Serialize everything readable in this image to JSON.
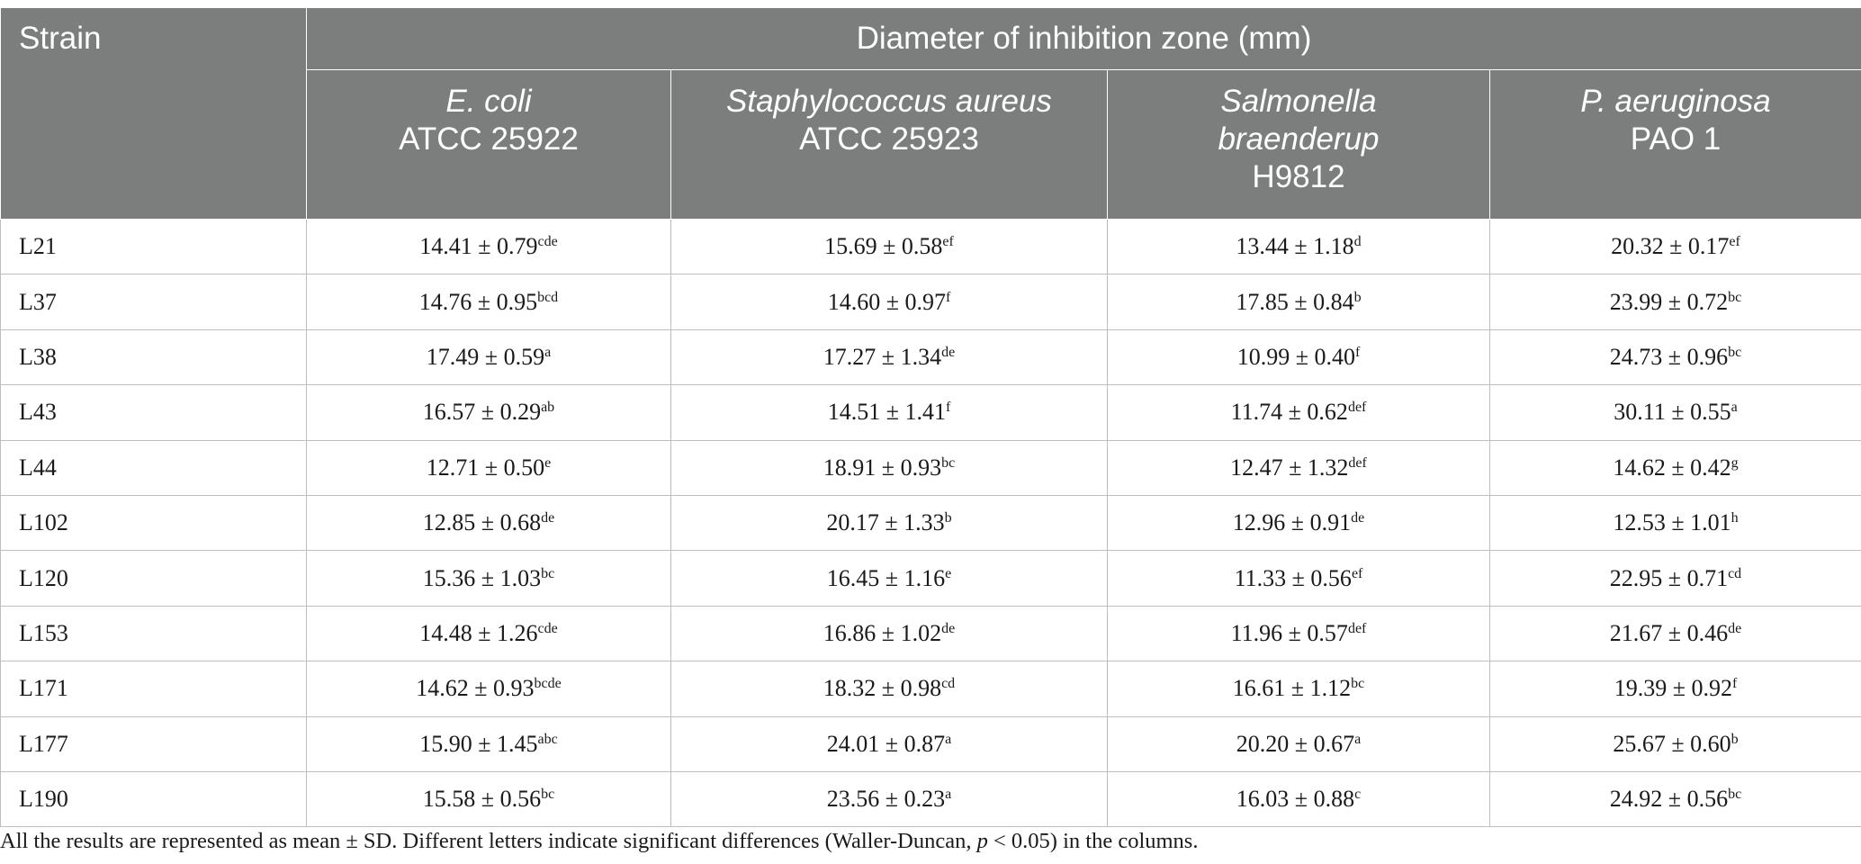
{
  "header": {
    "strain_label": "Strain",
    "group_label": "Diameter of inhibition zone (mm)",
    "columns": [
      {
        "species": [
          "E. coli"
        ],
        "id": "ATCC 25922"
      },
      {
        "species": [
          "Staphylococcus aureus"
        ],
        "id": "ATCC 25923"
      },
      {
        "species": [
          "Salmonella",
          "braenderup"
        ],
        "id": "H9812"
      },
      {
        "species": [
          "P. aeruginosa"
        ],
        "id": "PAO 1"
      }
    ]
  },
  "rows": [
    {
      "strain": "L21",
      "cells": [
        {
          "v": "14.41 ± 0.79",
          "s": "cde"
        },
        {
          "v": "15.69 ± 0.58",
          "s": "ef"
        },
        {
          "v": "13.44 ± 1.18",
          "s": "d"
        },
        {
          "v": "20.32 ± 0.17",
          "s": "ef"
        }
      ]
    },
    {
      "strain": "L37",
      "cells": [
        {
          "v": "14.76 ± 0.95",
          "s": "bcd"
        },
        {
          "v": "14.60 ± 0.97",
          "s": "f"
        },
        {
          "v": "17.85 ± 0.84",
          "s": "b"
        },
        {
          "v": "23.99 ± 0.72",
          "s": "bc"
        }
      ]
    },
    {
      "strain": "L38",
      "cells": [
        {
          "v": "17.49 ± 0.59",
          "s": "a"
        },
        {
          "v": "17.27 ± 1.34",
          "s": "de"
        },
        {
          "v": "10.99 ± 0.40",
          "s": "f"
        },
        {
          "v": "24.73 ± 0.96",
          "s": "bc"
        }
      ]
    },
    {
      "strain": "L43",
      "cells": [
        {
          "v": "16.57 ± 0.29",
          "s": "ab"
        },
        {
          "v": "14.51 ± 1.41",
          "s": "f"
        },
        {
          "v": "11.74 ± 0.62",
          "s": "def"
        },
        {
          "v": "30.11 ± 0.55",
          "s": "a"
        }
      ]
    },
    {
      "strain": "L44",
      "cells": [
        {
          "v": "12.71 ± 0.50",
          "s": "e"
        },
        {
          "v": "18.91 ± 0.93",
          "s": "bc"
        },
        {
          "v": "12.47 ± 1.32",
          "s": "def"
        },
        {
          "v": "14.62 ± 0.42",
          "s": "g"
        }
      ]
    },
    {
      "strain": "L102",
      "cells": [
        {
          "v": "12.85 ± 0.68",
          "s": "de"
        },
        {
          "v": "20.17 ± 1.33",
          "s": "b"
        },
        {
          "v": "12.96 ± 0.91",
          "s": "de"
        },
        {
          "v": "12.53 ± 1.01",
          "s": "h"
        }
      ]
    },
    {
      "strain": "L120",
      "cells": [
        {
          "v": "15.36 ± 1.03",
          "s": "bc"
        },
        {
          "v": "16.45 ± 1.16",
          "s": "e"
        },
        {
          "v": "11.33 ± 0.56",
          "s": "ef"
        },
        {
          "v": "22.95 ± 0.71",
          "s": "cd"
        }
      ]
    },
    {
      "strain": "L153",
      "cells": [
        {
          "v": "14.48 ± 1.26",
          "s": "cde"
        },
        {
          "v": "16.86 ± 1.02",
          "s": "de"
        },
        {
          "v": "11.96 ± 0.57",
          "s": "def"
        },
        {
          "v": "21.67 ± 0.46",
          "s": "de"
        }
      ]
    },
    {
      "strain": "L171",
      "cells": [
        {
          "v": "14.62 ± 0.93",
          "s": "bcde"
        },
        {
          "v": "18.32 ± 0.98",
          "s": "cd"
        },
        {
          "v": "16.61 ± 1.12",
          "s": "bc"
        },
        {
          "v": "19.39 ± 0.92",
          "s": "f"
        }
      ]
    },
    {
      "strain": "L177",
      "cells": [
        {
          "v": "15.90 ± 1.45",
          "s": "abc"
        },
        {
          "v": "24.01 ± 0.87",
          "s": "a"
        },
        {
          "v": "20.20 ± 0.67",
          "s": "a"
        },
        {
          "v": "25.67 ± 0.60",
          "s": "b"
        }
      ]
    },
    {
      "strain": "L190",
      "cells": [
        {
          "v": "15.58 ± 0.56",
          "s": "bc"
        },
        {
          "v": "23.56 ± 0.23",
          "s": "a"
        },
        {
          "v": "16.03 ± 0.88",
          "s": "c"
        },
        {
          "v": "24.92 ± 0.56",
          "s": "bc"
        }
      ]
    }
  ],
  "footnote": {
    "pre": "All the results are represented as mean ± SD. Different letters indicate significant differences (Waller-Duncan, ",
    "p": "p",
    "post": " < 0.05) in the columns."
  }
}
